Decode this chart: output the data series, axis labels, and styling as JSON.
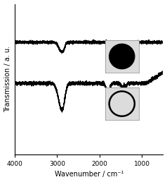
{
  "xlabel": "Wavenumber / cm⁻¹",
  "ylabel": "Transmission / a. u.",
  "xlim": [
    4000,
    500
  ],
  "ylim": [
    0.0,
    1.1
  ],
  "background_color": "#ffffff",
  "spectrum1_base": 0.82,
  "spectrum2_base": 0.52,
  "line_color": "#000000",
  "line_width": 1.0,
  "noise_amp1": 0.005,
  "noise_amp2": 0.006,
  "xticks": [
    4000,
    3000,
    2000,
    1000
  ],
  "xtick_labels": [
    "4000",
    "3000",
    "2000",
    "1000"
  ]
}
